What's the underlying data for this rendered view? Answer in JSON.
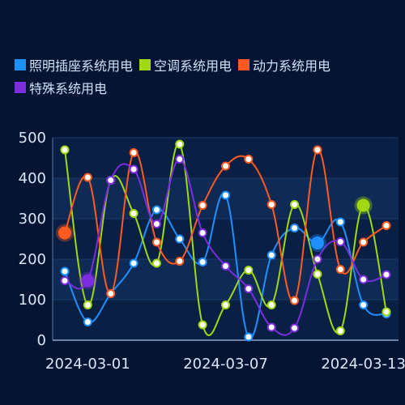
{
  "chart_data": {
    "type": "line",
    "smooth": true,
    "title": "",
    "xlabel": "",
    "ylabel": "",
    "x": [
      "2024-02-29",
      "2024-03-01",
      "2024-03-02",
      "2024-03-03",
      "2024-03-04",
      "2024-03-05",
      "2024-03-06",
      "2024-03-07",
      "2024-03-08",
      "2024-03-09",
      "2024-03-10",
      "2024-03-11",
      "2024-03-12",
      "2024-03-13",
      "2024-03-14"
    ],
    "xticks": [
      "2024-03-01",
      "2024-03-07",
      "2024-03-13"
    ],
    "ylim": [
      0,
      500
    ],
    "yticks": [
      0,
      100,
      200,
      300,
      400,
      500
    ],
    "legend_position": "top-left",
    "series": [
      {
        "name": "照明插座系统用电",
        "color": "#1e90ff",
        "values": [
          170,
          45,
          115,
          190,
          322,
          250,
          193,
          358,
          8,
          210,
          277,
          240,
          292,
          87,
          65
        ],
        "highlight_index": 11
      },
      {
        "name": "空调系统用电",
        "color": "#a0d911",
        "values": [
          470,
          87,
          395,
          313,
          190,
          484,
          38,
          87,
          173,
          87,
          335,
          163,
          23,
          333,
          70
        ],
        "highlight_index": 13
      },
      {
        "name": "动力系统用电",
        "color": "#ff5a1f",
        "values": [
          265,
          402,
          115,
          463,
          242,
          195,
          333,
          430,
          447,
          335,
          98,
          470,
          175,
          242,
          283
        ],
        "highlight_index": 0
      },
      {
        "name": "特殊系统用电",
        "color": "#7b2ee0",
        "values": [
          147,
          147,
          395,
          422,
          287,
          447,
          265,
          183,
          127,
          32,
          30,
          200,
          243,
          150,
          162
        ],
        "highlight_index": 1
      }
    ]
  }
}
